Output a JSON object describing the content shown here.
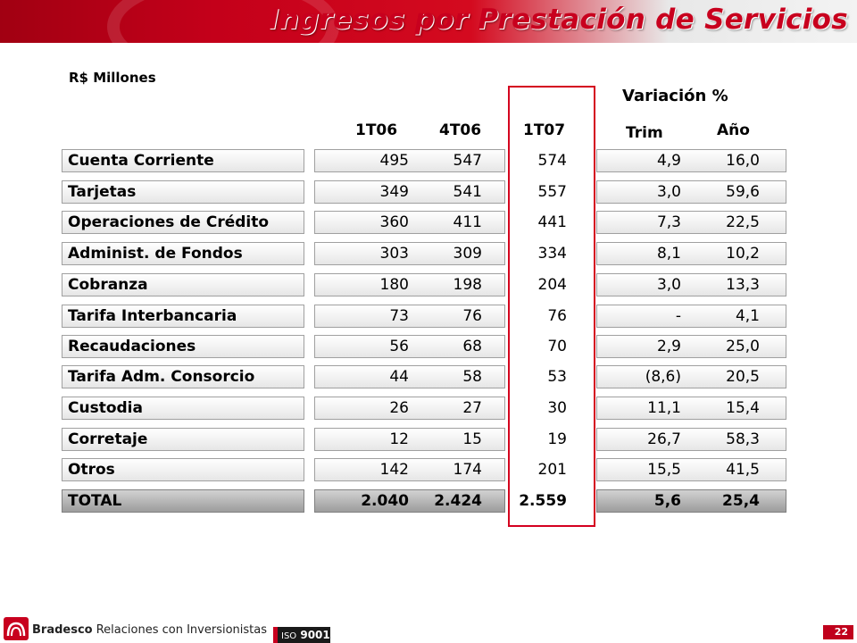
{
  "header": {
    "title": "Ingresos por Prestación de Servicios"
  },
  "table": {
    "unit_label": "R$ Millones",
    "variation_header": "Variación  %",
    "columns": [
      "1T06",
      "4T06",
      "1T07",
      "Trim",
      "Año"
    ],
    "highlight_color": "#d4001f",
    "rows": [
      {
        "label": "Cuenta Corriente",
        "q1t06": "495",
        "q4t06": "547",
        "q1t07": "574",
        "trim": "4,9",
        "anio": "16,0"
      },
      {
        "label": "Tarjetas",
        "q1t06": "349",
        "q4t06": "541",
        "q1t07": "557",
        "trim": "3,0",
        "anio": "59,6"
      },
      {
        "label": "Operaciones de Crédito",
        "q1t06": "360",
        "q4t06": "411",
        "q1t07": "441",
        "trim": "7,3",
        "anio": "22,5"
      },
      {
        "label": "Administ. de Fondos",
        "q1t06": "303",
        "q4t06": "309",
        "q1t07": "334",
        "trim": "8,1",
        "anio": "10,2"
      },
      {
        "label": "Cobranza",
        "q1t06": "180",
        "q4t06": "198",
        "q1t07": "204",
        "trim": "3,0",
        "anio": "13,3"
      },
      {
        "label": "Tarifa Interbancaria",
        "q1t06": "73",
        "q4t06": "76",
        "q1t07": "76",
        "trim": "-",
        "anio": "4,1"
      },
      {
        "label": "Recaudaciones",
        "q1t06": "56",
        "q4t06": "68",
        "q1t07": "70",
        "trim": "2,9",
        "anio": "25,0"
      },
      {
        "label": "Tarifa Adm. Consorcio",
        "q1t06": "44",
        "q4t06": "58",
        "q1t07": "53",
        "trim": "(8,6)",
        "anio": "20,5"
      },
      {
        "label": "Custodia",
        "q1t06": "26",
        "q4t06": "27",
        "q1t07": "30",
        "trim": "11,1",
        "anio": "15,4"
      },
      {
        "label": "Corretaje",
        "q1t06": "12",
        "q4t06": "15",
        "q1t07": "19",
        "trim": "26,7",
        "anio": "58,3"
      },
      {
        "label": "Otros",
        "q1t06": "142",
        "q4t06": "174",
        "q1t07": "201",
        "trim": "15,5",
        "anio": "41,5"
      }
    ],
    "total": {
      "label": "TOTAL",
      "q1t06": "2.040",
      "q4t06": "2.424",
      "q1t07": "2.559",
      "trim": "5,6",
      "anio": "25,4"
    }
  },
  "footer": {
    "brand_bold": "Bradesco",
    "brand_rest": " Relaciones  con Inversionistas",
    "iso_prefix": "ISO",
    "iso_number": "9001",
    "page_number": "22",
    "brand_color": "#c8001e"
  }
}
